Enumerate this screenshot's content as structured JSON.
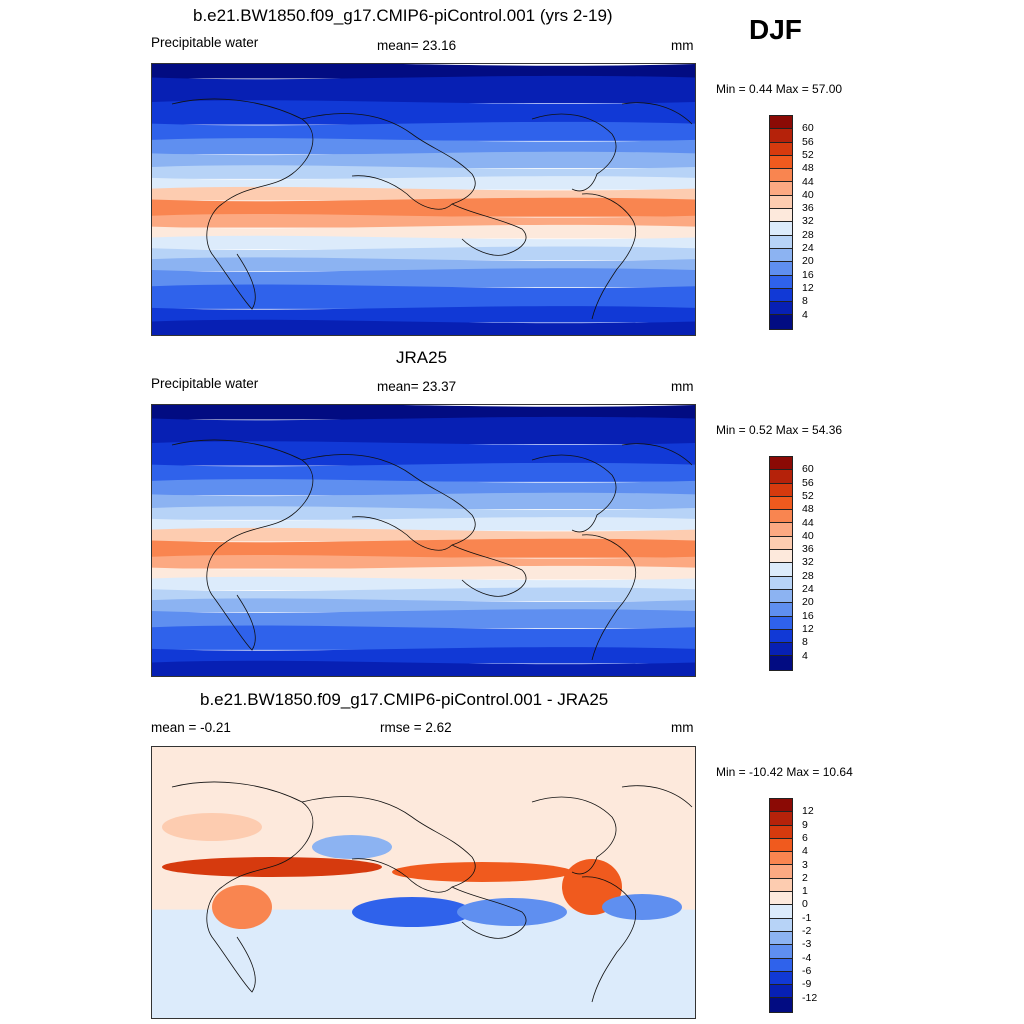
{
  "season": "DJF",
  "panels": [
    {
      "title": "b.e21.BW1850.f09_g17.CMIP6-piControl.001 (yrs 2-19)",
      "left_label": "Precipitable water",
      "center_label": "mean=  23.16",
      "units": "mm",
      "minmax": "Min =   0.44 Max =  57.00",
      "type": "field"
    },
    {
      "title": "JRA25",
      "left_label": "Precipitable water",
      "center_label": "mean=  23.37",
      "units": "mm",
      "minmax": "Min =   0.52 Max =  54.36",
      "type": "field"
    },
    {
      "title": "b.e21.BW1850.f09_g17.CMIP6-piControl.001 - JRA25",
      "left_label": "mean =  -0.21",
      "center_label": "rmse =   2.62",
      "units": "mm",
      "minmax": "Min = -10.42 Max =  10.64",
      "type": "diff"
    }
  ],
  "colorbar_field": {
    "labels": [
      "60",
      "56",
      "52",
      "48",
      "44",
      "40",
      "36",
      "32",
      "28",
      "24",
      "20",
      "16",
      "12",
      "8",
      "4"
    ],
    "colors": [
      "#8b0a05",
      "#b5220a",
      "#d63a0e",
      "#f05a1e",
      "#f98550",
      "#fca982",
      "#fdccb0",
      "#fde9dc",
      "#dcebfb",
      "#b7d3f7",
      "#8cb3f2",
      "#5f8ff0",
      "#2f62eb",
      "#1139d6",
      "#0720b4",
      "#020c82"
    ]
  },
  "colorbar_diff": {
    "labels": [
      "12",
      "9",
      "6",
      "4",
      "3",
      "2",
      "1",
      "0",
      "-1",
      "-2",
      "-3",
      "-4",
      "-6",
      "-9",
      "-12"
    ],
    "colors": [
      "#8b0a05",
      "#b5220a",
      "#d63a0e",
      "#f05a1e",
      "#f98550",
      "#fca982",
      "#fdccb0",
      "#fde9dc",
      "#dcebfb",
      "#b7d3f7",
      "#8cb3f2",
      "#5f8ff0",
      "#2f62eb",
      "#1139d6",
      "#0720b4",
      "#020c82"
    ]
  }
}
